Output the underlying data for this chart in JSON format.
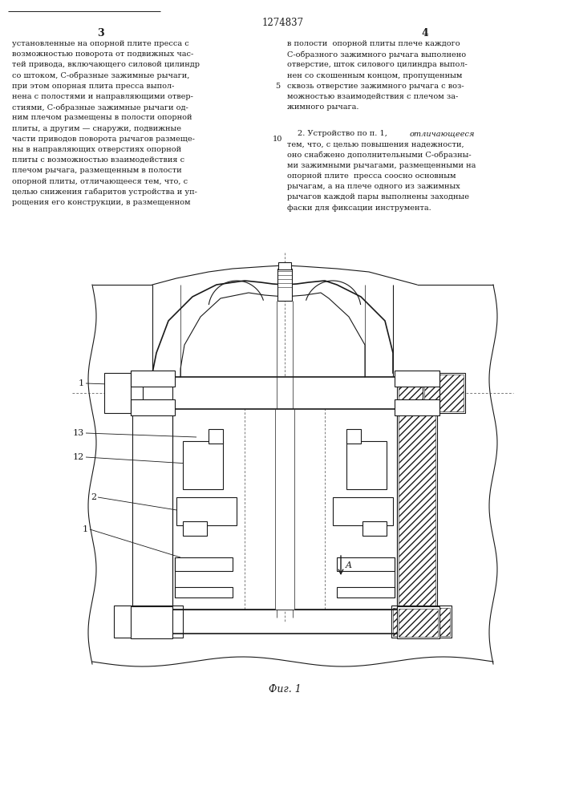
{
  "patent_number": "1274837",
  "page_left": "3",
  "page_right": "4",
  "fig_label": "Фиг. 1",
  "bg_color": "#ffffff",
  "line_color": "#1a1a1a",
  "text_left": [
    "установленные на опорной плите пресса с",
    "возможностью поворота от подвижных час-",
    "тей привода, включающего силовой цилиндр",
    "со штоком, С-образные зажимные рычаги,",
    "при этом опорная плита пресса выпол-",
    "нена с полостями и направляющими отвер-",
    "стиями, С-образные зажимные рычаги од-",
    "ним плечом размещены в полости опорной",
    "плиты, а другим — снаружи, подвижные",
    "части приводов поворота рычагов размеще-",
    "ны в направляющих отверстиях опорной",
    "плиты с возможностью взаимодействия с",
    "плечом рычага, размещенным в полости",
    "опорной плиты, отличающееся тем, что, с",
    "целью снижения габаритов устройства и уп-",
    "рощения его конструкции, в размещенном"
  ],
  "text_right_col1": [
    "в полости  опорной плиты плече каждого",
    "С-образного зажимного рычага выполнено",
    "отверстие, шток силового цилиндра выпол-",
    "нен со скошенным концом, пропущенным",
    "сквозь отверстие зажимного рычага с воз-",
    "можностью взаимодействия с плечом за-",
    "жимного рычага."
  ],
  "text_right_col2_indent": "    2. Устройство по п. 1, ",
  "text_right_col2_italic": "отличающееся",
  "text_right_col2": [
    "тем, что, с целью повышения надежности,",
    "оно снабжено дополнительными С-образны-",
    "ми зажимными рычагами, размещенными на",
    "опорной плите  пресса соосно основным",
    "рычагам, а на плече одного из зажимных",
    "рычагов каждой пары выполнены заходные",
    "фаски для фиксации инструмента."
  ],
  "line_number": "5",
  "line_number_10": "10"
}
